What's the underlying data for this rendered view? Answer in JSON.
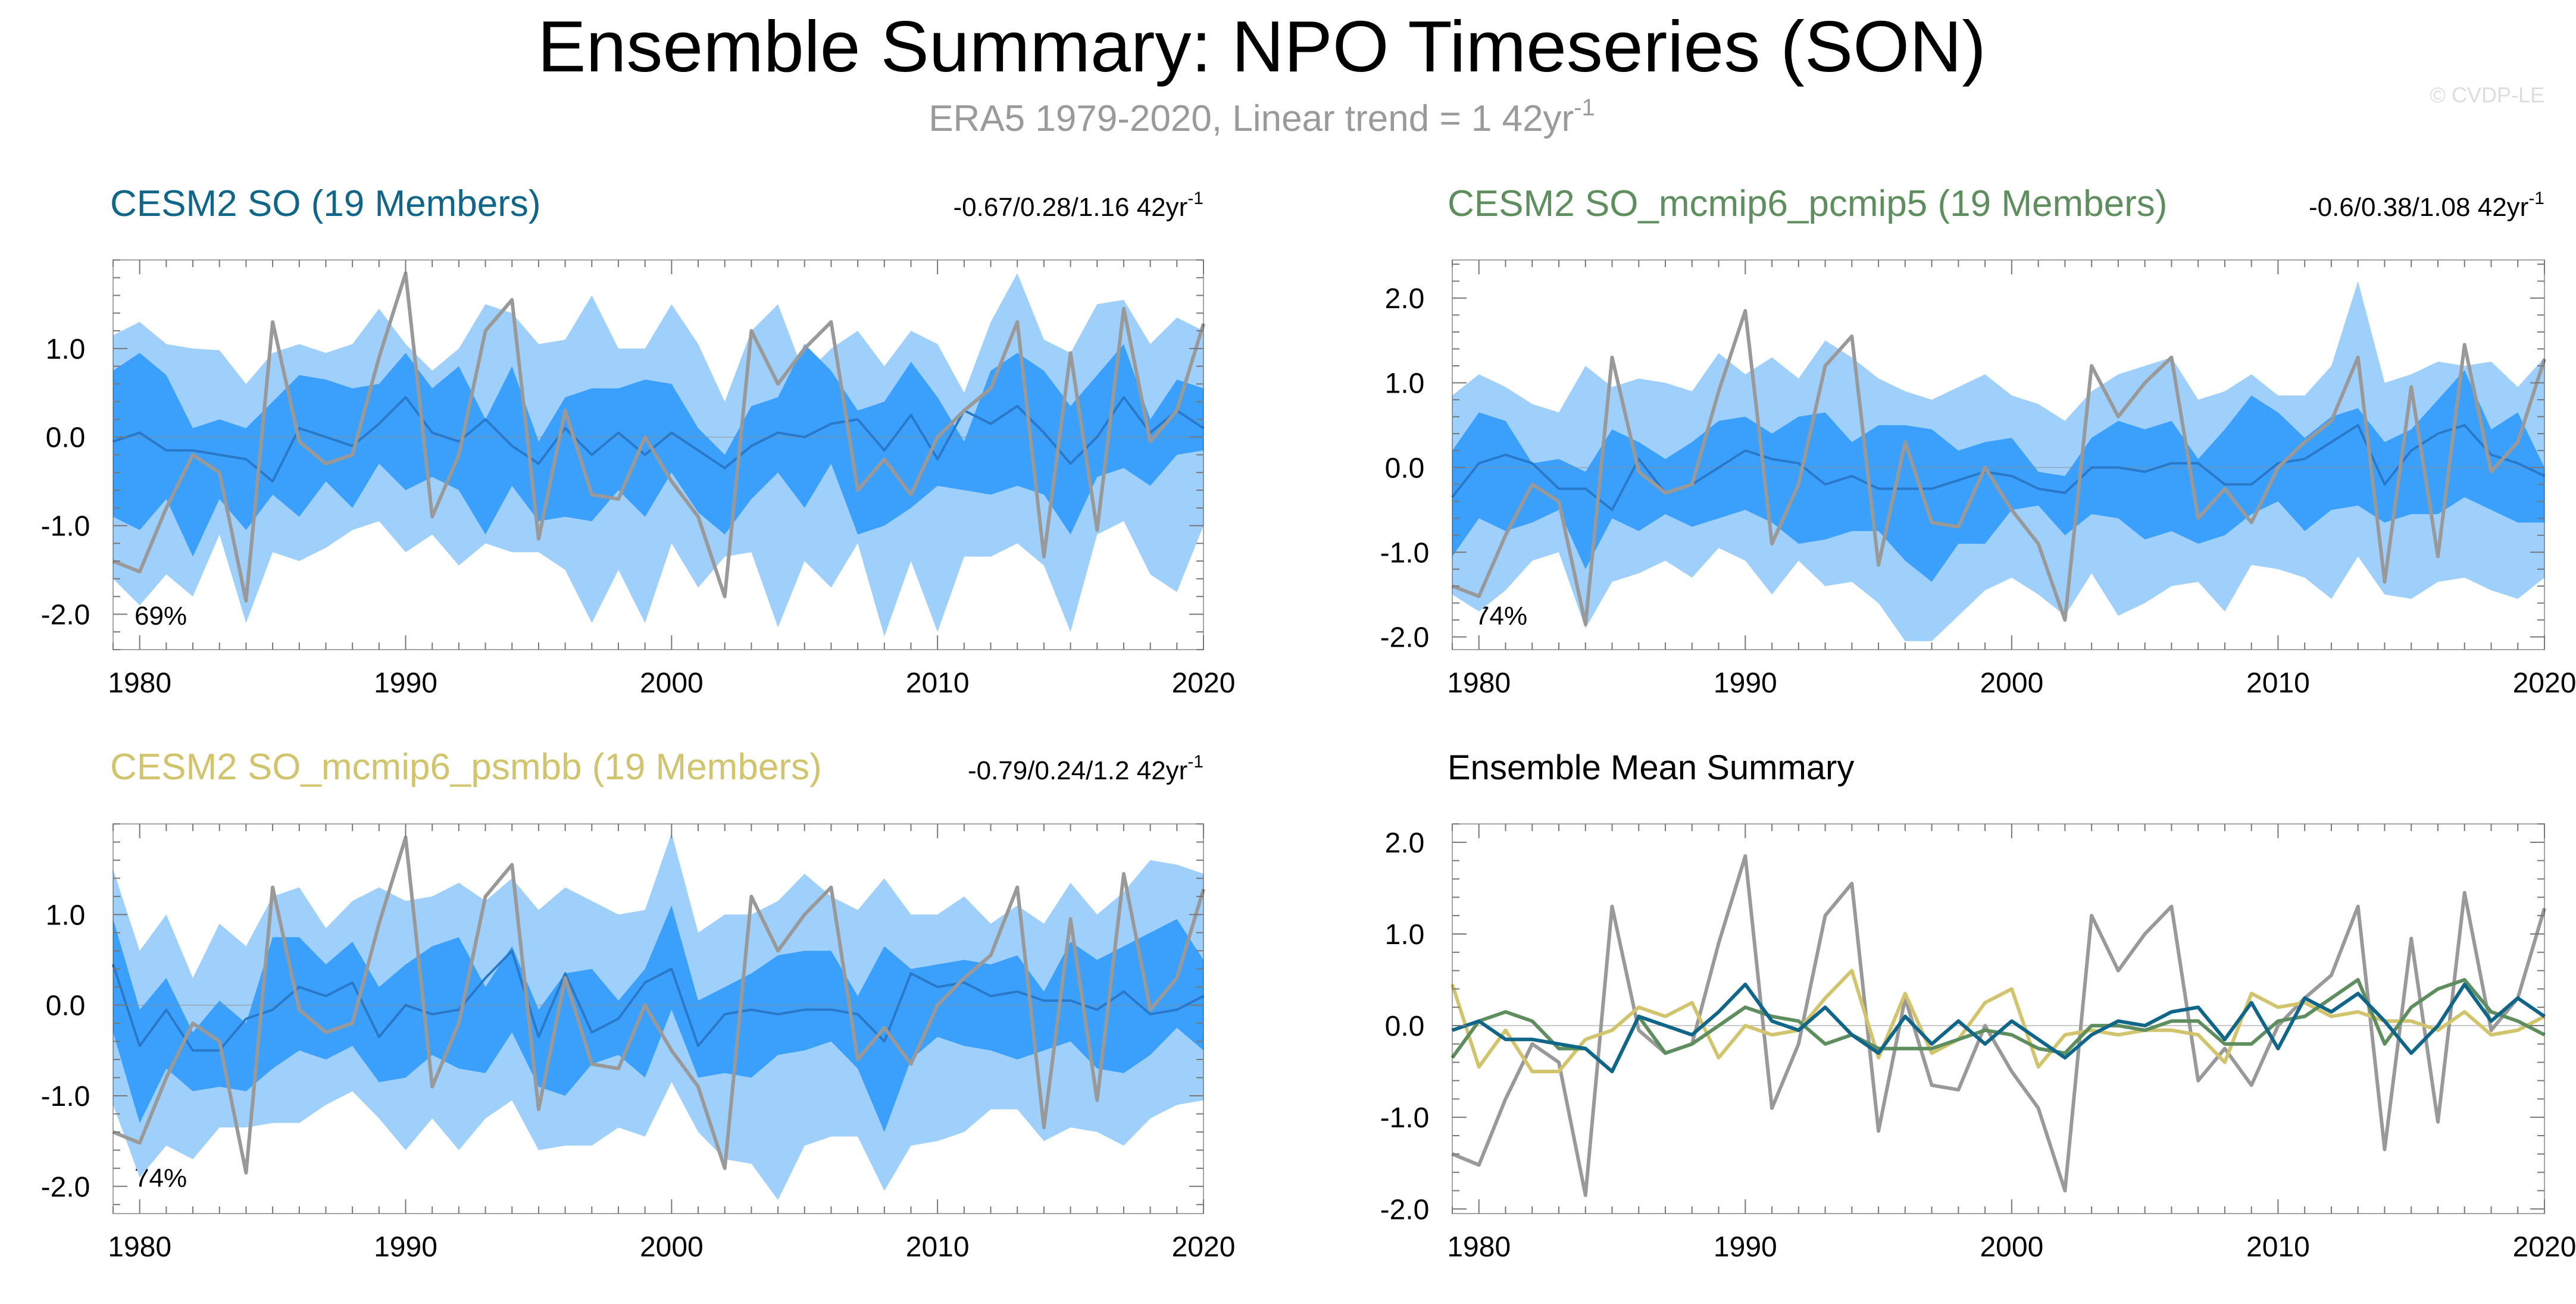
{
  "figure": {
    "title": "Ensemble Summary: NPO Timeseries (SON)",
    "subtitle_main": "ERA5 1979-2020, Linear trend = 1 42yr",
    "subtitle_sup": "-1",
    "watermark": "© CVDP-LE"
  },
  "colors": {
    "band_outer": "#9fd0fc",
    "band_inner": "#3ba0fb",
    "ens_mean_line": "#2a78c8",
    "obs_line": "#999999",
    "cesm2_so": "#106688",
    "cesm2_pcmip5": "#5e8e5d",
    "cesm2_psmbb": "#d2c46c",
    "axis": "#000000"
  },
  "chart_data": [
    {
      "type": "area",
      "id": "panel1",
      "title": "CESM2 SO (19 Members)",
      "title_color": "#106688",
      "trend_main": "-0.67/0.28/1.16 42yr",
      "trend_sup": "-1",
      "percent": "69%",
      "xlim": [
        1979,
        2020
      ],
      "ylim": [
        -2.4,
        2.0
      ],
      "yticks": [
        -2.0,
        -1.0,
        0.0,
        1.0
      ],
      "ytick_labels": [
        "-2.0",
        "-1.0",
        "0.0",
        "1.0"
      ],
      "xticks": [
        1980,
        1990,
        2000,
        2010,
        2020
      ],
      "xtick_labels": [
        "1980",
        "1990",
        "2000",
        "2010",
        "2020"
      ],
      "outer_upper": [
        1.15,
        1.3,
        1.05,
        1.0,
        0.98,
        0.6,
        0.95,
        1.05,
        0.95,
        1.05,
        1.45,
        1.05,
        0.75,
        1.0,
        1.5,
        1.4,
        1.05,
        1.1,
        1.6,
        1.0,
        1.0,
        1.5,
        1.05,
        0.4,
        1.2,
        1.5,
        0.7,
        1.0,
        1.2,
        0.8,
        1.2,
        1.05,
        0.5,
        1.3,
        1.85,
        1.1,
        0.95,
        1.5,
        1.55,
        1.05,
        1.35,
        1.2
      ],
      "inner_upper": [
        0.75,
        0.95,
        0.7,
        0.1,
        0.2,
        0.1,
        0.4,
        0.7,
        0.65,
        0.55,
        0.6,
        0.95,
        0.55,
        0.8,
        0.2,
        0.8,
        -0.05,
        0.45,
        0.55,
        0.55,
        0.65,
        0.6,
        0.1,
        -0.2,
        0.35,
        0.45,
        1.05,
        0.75,
        0.3,
        0.4,
        0.85,
        0.45,
        -0.05,
        0.75,
        0.95,
        0.75,
        0.35,
        0.7,
        1.05,
        0.2,
        0.65,
        0.55
      ],
      "inner_lower": [
        -0.9,
        -1.05,
        -0.7,
        -1.35,
        -0.7,
        -1.05,
        -0.65,
        -0.9,
        -0.5,
        -0.8,
        -0.3,
        -0.6,
        -0.45,
        -0.6,
        -1.1,
        -0.55,
        -0.95,
        -0.9,
        -0.95,
        -0.6,
        -0.9,
        -0.4,
        -0.85,
        -1.1,
        -0.7,
        -0.4,
        -0.8,
        -0.3,
        -1.1,
        -1.0,
        -0.8,
        -0.55,
        -0.6,
        -0.65,
        -0.55,
        -0.65,
        -1.1,
        -0.45,
        -0.35,
        -0.55,
        -0.2,
        -0.15
      ],
      "outer_lower": [
        -1.6,
        -1.9,
        -1.55,
        -1.8,
        -1.1,
        -2.1,
        -1.3,
        -1.4,
        -1.25,
        -1.05,
        -0.95,
        -1.3,
        -1.1,
        -1.45,
        -1.2,
        -1.3,
        -1.3,
        -1.5,
        -2.1,
        -1.5,
        -2.1,
        -1.2,
        -1.7,
        -1.35,
        -1.3,
        -2.15,
        -1.4,
        -1.7,
        -1.2,
        -2.25,
        -1.4,
        -2.2,
        -1.35,
        -1.35,
        -1.2,
        -1.45,
        -2.2,
        -1.1,
        -0.95,
        -1.55,
        -1.75,
        -1.0
      ],
      "ens_mean": [
        -0.05,
        0.05,
        -0.15,
        -0.15,
        -0.2,
        -0.25,
        -0.5,
        0.1,
        0.0,
        -0.1,
        0.15,
        0.45,
        0.05,
        -0.05,
        0.2,
        -0.1,
        -0.3,
        0.1,
        -0.2,
        0.05,
        -0.2,
        0.05,
        -0.15,
        -0.35,
        -0.1,
        0.05,
        0.0,
        0.15,
        0.2,
        -0.15,
        0.25,
        -0.25,
        0.3,
        0.15,
        0.35,
        0.05,
        -0.3,
        0.0,
        0.45,
        0.05,
        0.3,
        0.1
      ],
      "obs": [
        -1.4,
        -1.52,
        -0.8,
        -0.2,
        -0.4,
        -1.85,
        1.3,
        -0.05,
        -0.3,
        -0.2,
        0.9,
        1.85,
        -0.9,
        -0.2,
        1.2,
        1.55,
        -1.15,
        0.3,
        -0.65,
        -0.7,
        0.0,
        -0.5,
        -0.9,
        -1.8,
        1.2,
        0.6,
        1.0,
        1.3,
        -0.6,
        -0.25,
        -0.65,
        0.0,
        0.3,
        0.55,
        1.3,
        -1.35,
        0.95,
        -1.05,
        1.45,
        -0.05,
        0.3,
        1.28
      ]
    },
    {
      "type": "area",
      "id": "panel2",
      "title": "CESM2 SO_mcmip6_pcmip5 (19 Members)",
      "title_color": "#5e8e5d",
      "trend_main": "-0.6/0.38/1.08 42yr",
      "trend_sup": "-1",
      "percent": "74%",
      "xlim": [
        1979,
        2020
      ],
      "ylim": [
        -2.15,
        2.45
      ],
      "yticks": [
        -2.0,
        -1.0,
        0.0,
        1.0,
        2.0
      ],
      "ytick_labels": [
        "-2.0",
        "-1.0",
        "0.0",
        "1.0",
        "2.0"
      ],
      "xticks": [
        1980,
        1990,
        2000,
        2010,
        2020
      ],
      "xtick_labels": [
        "1980",
        "1990",
        "2000",
        "2010",
        "2020"
      ],
      "outer_upper": [
        0.85,
        1.1,
        0.95,
        0.75,
        0.65,
        1.2,
        0.95,
        1.05,
        1.0,
        0.9,
        1.35,
        1.1,
        1.3,
        1.05,
        1.5,
        1.3,
        1.05,
        0.9,
        0.8,
        0.95,
        1.1,
        0.85,
        0.75,
        0.55,
        0.9,
        1.1,
        1.2,
        1.3,
        0.8,
        0.9,
        1.1,
        0.85,
        0.85,
        1.2,
        2.2,
        1.0,
        1.1,
        1.25,
        1.2,
        1.25,
        0.95,
        1.3
      ],
      "inner_upper": [
        0.2,
        0.65,
        0.55,
        0.05,
        0.1,
        -0.05,
        0.45,
        0.3,
        0.1,
        0.3,
        0.55,
        0.6,
        0.4,
        0.6,
        0.65,
        0.3,
        0.5,
        0.5,
        0.45,
        0.2,
        0.3,
        0.35,
        -0.05,
        -0.1,
        0.35,
        0.55,
        0.45,
        0.55,
        0.1,
        0.45,
        0.85,
        0.65,
        0.35,
        0.6,
        0.7,
        0.3,
        0.45,
        0.8,
        1.15,
        0.45,
        0.65,
        0.0
      ],
      "inner_lower": [
        -1.05,
        -0.6,
        -0.75,
        -0.65,
        -0.5,
        -1.2,
        -0.6,
        -0.75,
        -0.55,
        -0.7,
        -0.6,
        -0.5,
        -0.65,
        -0.9,
        -0.85,
        -0.75,
        -0.75,
        -1.1,
        -1.35,
        -0.9,
        -0.9,
        -0.5,
        -0.45,
        -0.8,
        -0.55,
        -0.6,
        -0.85,
        -0.75,
        -0.9,
        -0.8,
        -0.55,
        -0.4,
        -0.75,
        -0.5,
        -0.45,
        -0.65,
        -0.55,
        -0.55,
        -0.35,
        -0.5,
        -0.65,
        -0.65
      ],
      "outer_lower": [
        -1.5,
        -1.7,
        -1.45,
        -1.1,
        -1.0,
        -1.9,
        -1.35,
        -1.25,
        -1.1,
        -1.3,
        -0.95,
        -1.1,
        -1.5,
        -1.1,
        -1.4,
        -1.35,
        -1.6,
        -2.05,
        -2.05,
        -1.75,
        -1.45,
        -1.3,
        -1.5,
        -1.75,
        -1.25,
        -1.75,
        -1.6,
        -1.4,
        -1.35,
        -1.7,
        -1.15,
        -1.2,
        -1.3,
        -1.55,
        -1.05,
        -1.5,
        -1.55,
        -1.35,
        -1.3,
        -1.45,
        -1.55,
        -1.3
      ],
      "ens_mean": [
        -0.35,
        0.05,
        0.15,
        0.05,
        -0.25,
        -0.25,
        -0.5,
        0.1,
        -0.3,
        -0.2,
        0.0,
        0.2,
        0.1,
        0.05,
        -0.2,
        -0.1,
        -0.25,
        -0.25,
        -0.25,
        -0.15,
        -0.05,
        -0.1,
        -0.25,
        -0.3,
        0.0,
        0.0,
        -0.05,
        0.05,
        0.05,
        -0.2,
        -0.2,
        0.05,
        0.1,
        0.3,
        0.5,
        -0.2,
        0.2,
        0.4,
        0.5,
        0.15,
        0.05,
        -0.1
      ],
      "obs": [
        -1.4,
        -1.52,
        -0.8,
        -0.2,
        -0.4,
        -1.85,
        1.3,
        -0.05,
        -0.3,
        -0.2,
        0.9,
        1.85,
        -0.9,
        -0.2,
        1.2,
        1.55,
        -1.15,
        0.3,
        -0.65,
        -0.7,
        0.0,
        -0.5,
        -0.9,
        -1.8,
        1.2,
        0.6,
        1.0,
        1.3,
        -0.6,
        -0.25,
        -0.65,
        0.0,
        0.3,
        0.55,
        1.3,
        -1.35,
        0.95,
        -1.05,
        1.45,
        -0.05,
        0.3,
        1.28
      ]
    },
    {
      "type": "area",
      "id": "panel3",
      "title": "CESM2 SO_mcmip6_psmbb (19 Members)",
      "title_color": "#d2c46c",
      "trend_main": "-0.79/0.24/1.2 42yr",
      "trend_sup": "-1",
      "percent": "74%",
      "xlim": [
        1979,
        2020
      ],
      "ylim": [
        -2.3,
        2.0
      ],
      "yticks": [
        -2.0,
        -1.0,
        0.0,
        1.0
      ],
      "ytick_labels": [
        "-2.0",
        "-1.0",
        "0.0",
        "1.0"
      ],
      "xticks": [
        1980,
        1990,
        2000,
        2010,
        2020
      ],
      "xtick_labels": [
        "1980",
        "1990",
        "2000",
        "2010",
        "2020"
      ],
      "outer_upper": [
        1.5,
        0.6,
        1.0,
        0.3,
        0.9,
        0.65,
        1.2,
        1.3,
        0.85,
        1.15,
        1.3,
        1.15,
        1.2,
        1.35,
        1.15,
        1.4,
        1.05,
        1.3,
        1.15,
        1.0,
        1.05,
        1.9,
        0.8,
        1.0,
        1.0,
        1.15,
        1.45,
        1.2,
        1.05,
        1.4,
        1.0,
        1.0,
        1.2,
        0.9,
        1.1,
        0.9,
        1.35,
        1.0,
        1.25,
        1.6,
        1.55,
        1.45
      ],
      "inner_upper": [
        0.95,
        -0.05,
        0.3,
        -0.3,
        0.05,
        -0.2,
        0.75,
        0.75,
        0.45,
        0.7,
        0.2,
        0.45,
        0.65,
        0.75,
        0.2,
        0.65,
        -0.05,
        0.35,
        0.4,
        0.05,
        0.4,
        1.1,
        0.05,
        0.2,
        0.35,
        0.55,
        0.6,
        0.6,
        0.1,
        0.65,
        0.4,
        0.45,
        0.5,
        0.45,
        0.55,
        0.15,
        0.7,
        0.5,
        0.65,
        0.8,
        0.95,
        0.5
      ],
      "inner_lower": [
        -0.3,
        -1.3,
        -0.7,
        -0.95,
        -0.9,
        -0.95,
        -0.7,
        -0.5,
        -0.6,
        -0.45,
        -0.85,
        -0.8,
        -0.55,
        -0.7,
        -0.75,
        -0.3,
        -0.9,
        -1.0,
        -0.65,
        -0.55,
        -0.8,
        -0.05,
        -0.8,
        -0.75,
        -0.8,
        -0.55,
        -0.5,
        -0.4,
        -0.7,
        -1.4,
        -0.6,
        -0.35,
        -0.45,
        -0.5,
        -0.6,
        -0.5,
        -0.4,
        -0.7,
        -0.75,
        -0.55,
        -0.25,
        -0.5
      ],
      "outer_lower": [
        -1.1,
        -1.9,
        -1.55,
        -1.7,
        -1.35,
        -1.35,
        -1.3,
        -1.3,
        -1.1,
        -0.95,
        -1.25,
        -1.6,
        -1.25,
        -1.6,
        -1.25,
        -1.05,
        -1.6,
        -1.55,
        -1.55,
        -1.35,
        -1.45,
        -0.85,
        -1.4,
        -1.7,
        -1.75,
        -2.15,
        -1.55,
        -1.45,
        -1.45,
        -2.05,
        -1.55,
        -1.5,
        -1.4,
        -1.15,
        -1.15,
        -1.5,
        -1.35,
        -1.4,
        -1.55,
        -1.25,
        -1.1,
        -1.05
      ],
      "ens_mean": [
        0.45,
        -0.45,
        -0.05,
        -0.5,
        -0.5,
        -0.15,
        -0.05,
        0.2,
        0.1,
        0.25,
        -0.35,
        0.0,
        -0.1,
        -0.05,
        0.3,
        0.6,
        -0.35,
        0.35,
        -0.3,
        -0.15,
        0.25,
        0.4,
        -0.45,
        -0.1,
        -0.05,
        -0.1,
        -0.05,
        -0.05,
        -0.1,
        -0.4,
        0.35,
        0.2,
        0.25,
        0.1,
        0.15,
        0.05,
        0.05,
        -0.05,
        0.15,
        -0.1,
        -0.05,
        0.1
      ],
      "obs": [
        -1.4,
        -1.52,
        -0.8,
        -0.2,
        -0.4,
        -1.85,
        1.3,
        -0.05,
        -0.3,
        -0.2,
        0.9,
        1.85,
        -0.9,
        -0.2,
        1.2,
        1.55,
        -1.15,
        0.3,
        -0.65,
        -0.7,
        0.0,
        -0.5,
        -0.9,
        -1.8,
        1.2,
        0.6,
        1.0,
        1.3,
        -0.6,
        -0.25,
        -0.65,
        0.0,
        0.3,
        0.55,
        1.3,
        -1.35,
        0.95,
        -1.05,
        1.45,
        -0.05,
        0.3,
        1.28
      ]
    },
    {
      "type": "line",
      "id": "panel4",
      "title": "Ensemble Mean Summary",
      "title_color": "#000000",
      "xlim": [
        1979,
        2020
      ],
      "ylim": [
        -2.05,
        2.2
      ],
      "yticks": [
        -2.0,
        -1.0,
        0.0,
        1.0,
        2.0
      ],
      "ytick_labels": [
        "-2.0",
        "-1.0",
        "0.0",
        "1.0",
        "2.0"
      ],
      "xticks": [
        1980,
        1990,
        2000,
        2010,
        2020
      ],
      "xtick_labels": [
        "1980",
        "1990",
        "2000",
        "2010",
        "2020"
      ],
      "series": [
        {
          "name": "ERA5",
          "color": "#999999",
          "values": [
            -1.4,
            -1.52,
            -0.8,
            -0.2,
            -0.4,
            -1.85,
            1.3,
            -0.05,
            -0.3,
            -0.2,
            0.9,
            1.85,
            -0.9,
            -0.2,
            1.2,
            1.55,
            -1.15,
            0.3,
            -0.65,
            -0.7,
            0.0,
            -0.5,
            -0.9,
            -1.8,
            1.2,
            0.6,
            1.0,
            1.3,
            -0.6,
            -0.25,
            -0.65,
            0.0,
            0.3,
            0.55,
            1.3,
            -1.35,
            0.95,
            -1.05,
            1.45,
            -0.05,
            0.3,
            1.28
          ]
        },
        {
          "name": "CESM2 SO_mcmip6_psmbb",
          "color": "#d2c46c",
          "values": [
            0.45,
            -0.45,
            -0.05,
            -0.5,
            -0.5,
            -0.15,
            -0.05,
            0.2,
            0.1,
            0.25,
            -0.35,
            0.0,
            -0.1,
            -0.05,
            0.3,
            0.6,
            -0.35,
            0.35,
            -0.3,
            -0.15,
            0.25,
            0.4,
            -0.45,
            -0.1,
            -0.05,
            -0.1,
            -0.05,
            -0.05,
            -0.1,
            -0.4,
            0.35,
            0.2,
            0.25,
            0.1,
            0.15,
            0.05,
            0.05,
            -0.05,
            0.15,
            -0.1,
            -0.05,
            0.1
          ]
        },
        {
          "name": "CESM2 SO_mcmip6_pcmip5",
          "color": "#5e8e5d",
          "values": [
            -0.35,
            0.05,
            0.15,
            0.05,
            -0.25,
            -0.25,
            -0.5,
            0.1,
            -0.3,
            -0.2,
            0.0,
            0.2,
            0.1,
            0.05,
            -0.2,
            -0.1,
            -0.25,
            -0.25,
            -0.25,
            -0.15,
            -0.05,
            -0.1,
            -0.25,
            -0.3,
            0.0,
            0.0,
            -0.05,
            0.05,
            0.05,
            -0.2,
            -0.2,
            0.05,
            0.1,
            0.3,
            0.5,
            -0.2,
            0.2,
            0.4,
            0.5,
            0.15,
            0.05,
            -0.1
          ]
        },
        {
          "name": "CESM2 SO",
          "color": "#106688",
          "values": [
            -0.05,
            0.05,
            -0.15,
            -0.15,
            -0.2,
            -0.25,
            -0.5,
            0.1,
            0.0,
            -0.1,
            0.15,
            0.45,
            0.05,
            -0.05,
            0.2,
            -0.1,
            -0.3,
            0.1,
            -0.2,
            0.05,
            -0.2,
            0.05,
            -0.15,
            -0.35,
            -0.1,
            0.05,
            0.0,
            0.15,
            0.2,
            -0.15,
            0.25,
            -0.25,
            0.3,
            0.15,
            0.35,
            0.05,
            -0.3,
            0.0,
            0.45,
            0.05,
            0.3,
            0.1
          ]
        }
      ]
    }
  ]
}
